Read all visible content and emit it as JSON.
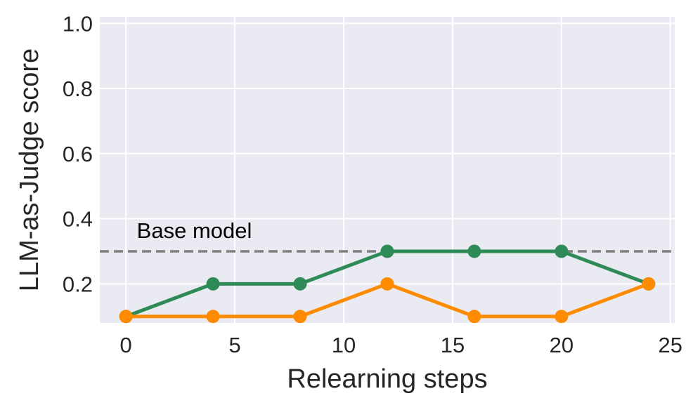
{
  "chart_data": {
    "type": "line",
    "xlabel": "Relearning steps",
    "ylabel": "LLM-as-Judge score",
    "xlim": [
      -1.2,
      25.2
    ],
    "ylim": [
      0.08,
      1.02
    ],
    "x_ticks": [
      0,
      5,
      10,
      15,
      20,
      25
    ],
    "y_ticks": [
      0.2,
      0.4,
      0.6,
      0.8,
      1.0
    ],
    "x_tick_labels": [
      "0",
      "5",
      "10",
      "15",
      "20",
      "25"
    ],
    "y_tick_labels": [
      "0.2",
      "0.4",
      "0.6",
      "0.8",
      "1.0"
    ],
    "grid": true,
    "background": "#eaeaf2",
    "series": [
      {
        "color": "#2e8b57",
        "x": [
          0,
          4,
          8,
          12,
          16,
          20,
          24
        ],
        "y": [
          0.1,
          0.2,
          0.2,
          0.3,
          0.3,
          0.3,
          0.2
        ]
      },
      {
        "color": "#ff8c00",
        "x": [
          0,
          4,
          8,
          12,
          16,
          20,
          24
        ],
        "y": [
          0.1,
          0.1,
          0.1,
          0.2,
          0.1,
          0.1,
          0.2
        ]
      }
    ],
    "reference_line": {
      "y": 0.3,
      "label": "Base model",
      "color": "#808080",
      "style": "dashed"
    }
  }
}
